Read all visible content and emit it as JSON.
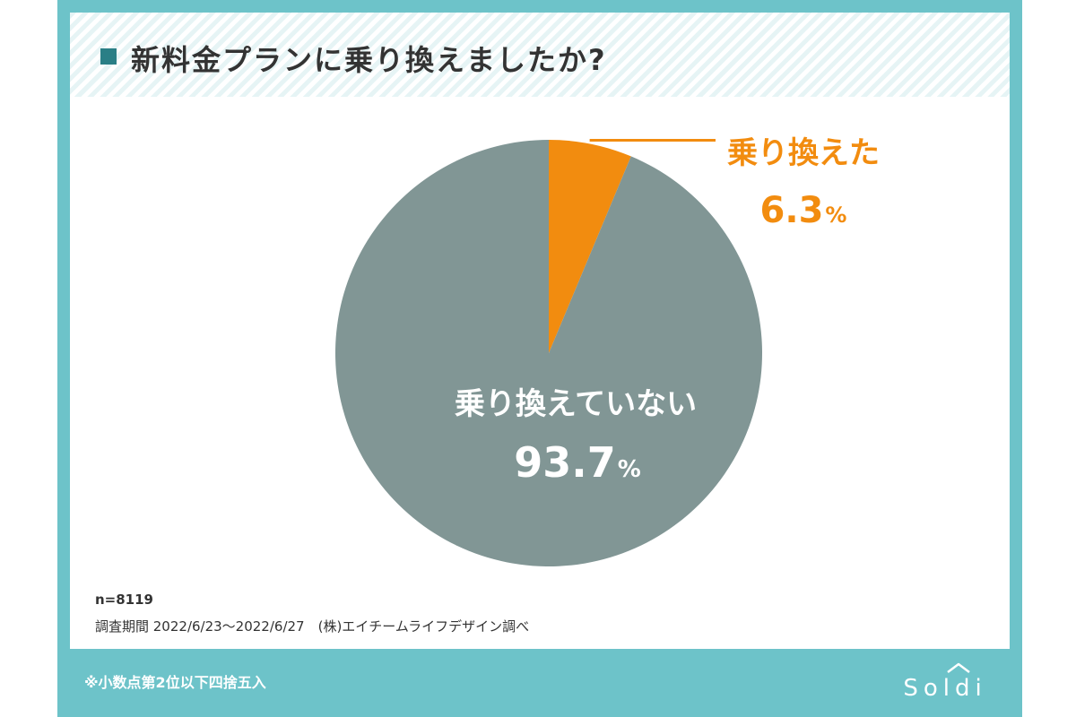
{
  "title": "新料金プランに乗り換えましたか?",
  "chart_data": {
    "type": "pie",
    "title": "新料金プランに乗り換えましたか?",
    "slices": [
      {
        "label": "乗り換えた",
        "value": 6.3,
        "display": "6.3",
        "unit": "%",
        "color": "#f28c0f"
      },
      {
        "label": "乗り換えていない",
        "value": 93.7,
        "display": "93.7",
        "unit": "%",
        "color": "#819695"
      }
    ],
    "start": "top (12 o'clock)",
    "direction": "clockwise"
  },
  "footer": {
    "sample": "n=8119",
    "period": "調査期間 2022/6/23〜2022/6/27　(株)エイチームライフデザイン調べ",
    "note": "※小数点第2位以下四捨五入",
    "logo": "Soldi"
  },
  "colors": {
    "frame": "#6dc3c9",
    "title_square": "#2a7f86",
    "accent": "#f28c0f",
    "main_slice": "#819695"
  }
}
